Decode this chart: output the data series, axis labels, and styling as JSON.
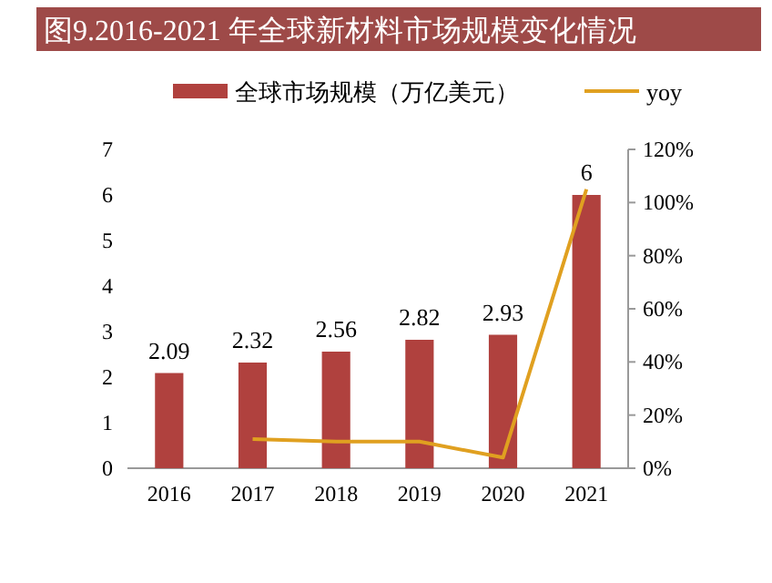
{
  "chart_data": {
    "type": "bar",
    "title": "图9.2016-2021 年全球新材料市场规模变化情况",
    "categories": [
      "2016",
      "2017",
      "2018",
      "2019",
      "2020",
      "2021"
    ],
    "series": [
      {
        "name": "全球市场规模（万亿美元）",
        "color": "#b0413e",
        "values": [
          2.09,
          2.32,
          2.56,
          2.82,
          2.93,
          6
        ],
        "value_labels": [
          "2.09",
          "2.32",
          "2.56",
          "2.82",
          "2.93",
          "6"
        ]
      },
      {
        "name": "yoy",
        "type": "line",
        "axis": "y2",
        "color": "#e0a020",
        "values": [
          null,
          11,
          10,
          10,
          4,
          105
        ]
      }
    ],
    "ylim": [
      0,
      7
    ],
    "yticks": [
      0,
      1,
      2,
      3,
      4,
      5,
      6,
      7
    ],
    "y2lim": [
      0,
      120
    ],
    "y2ticks": [
      {
        "value": 0,
        "label": "0%"
      },
      {
        "value": 20,
        "label": "20%"
      },
      {
        "value": 40,
        "label": "40%"
      },
      {
        "value": 60,
        "label": "60%"
      },
      {
        "value": 80,
        "label": "80%"
      },
      {
        "value": 100,
        "label": "100%"
      },
      {
        "value": 120,
        "label": "120%"
      }
    ],
    "legend": "top",
    "grid": false,
    "marker": "none",
    "line_style": "solid"
  }
}
